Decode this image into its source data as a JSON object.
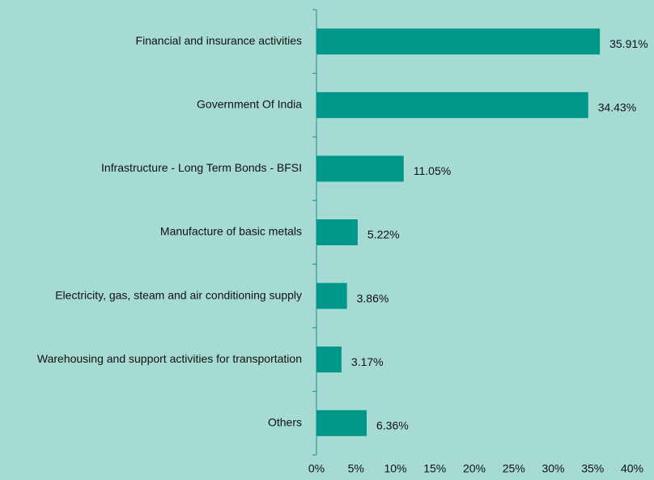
{
  "chart_data": {
    "type": "bar",
    "orientation": "horizontal",
    "categories": [
      "Financial and insurance activities",
      "Government Of India",
      "Infrastructure - Long Term Bonds - BFSI",
      "Manufacture of basic metals",
      "Electricity, gas, steam and air conditioning supply",
      "Warehousing and support activities for transportation",
      "Others"
    ],
    "values": [
      35.91,
      34.43,
      11.05,
      5.22,
      3.86,
      3.17,
      6.36
    ],
    "value_labels": [
      "35.91%",
      "34.43%",
      "11.05%",
      "5.22%",
      "3.86%",
      "3.17%",
      "6.36%"
    ],
    "color": "#00978b",
    "xlim": [
      0,
      40
    ],
    "xticks": [
      {
        "value": 0,
        "label": "0%"
      },
      {
        "value": 5,
        "label": "5%"
      },
      {
        "value": 10,
        "label": "10%"
      },
      {
        "value": 15,
        "label": "15%"
      },
      {
        "value": 20,
        "label": "20%"
      },
      {
        "value": 25,
        "label": "25%"
      },
      {
        "value": 30,
        "label": "30%"
      },
      {
        "value": 35,
        "label": "35%"
      },
      {
        "value": 40,
        "label": "40%"
      }
    ]
  }
}
